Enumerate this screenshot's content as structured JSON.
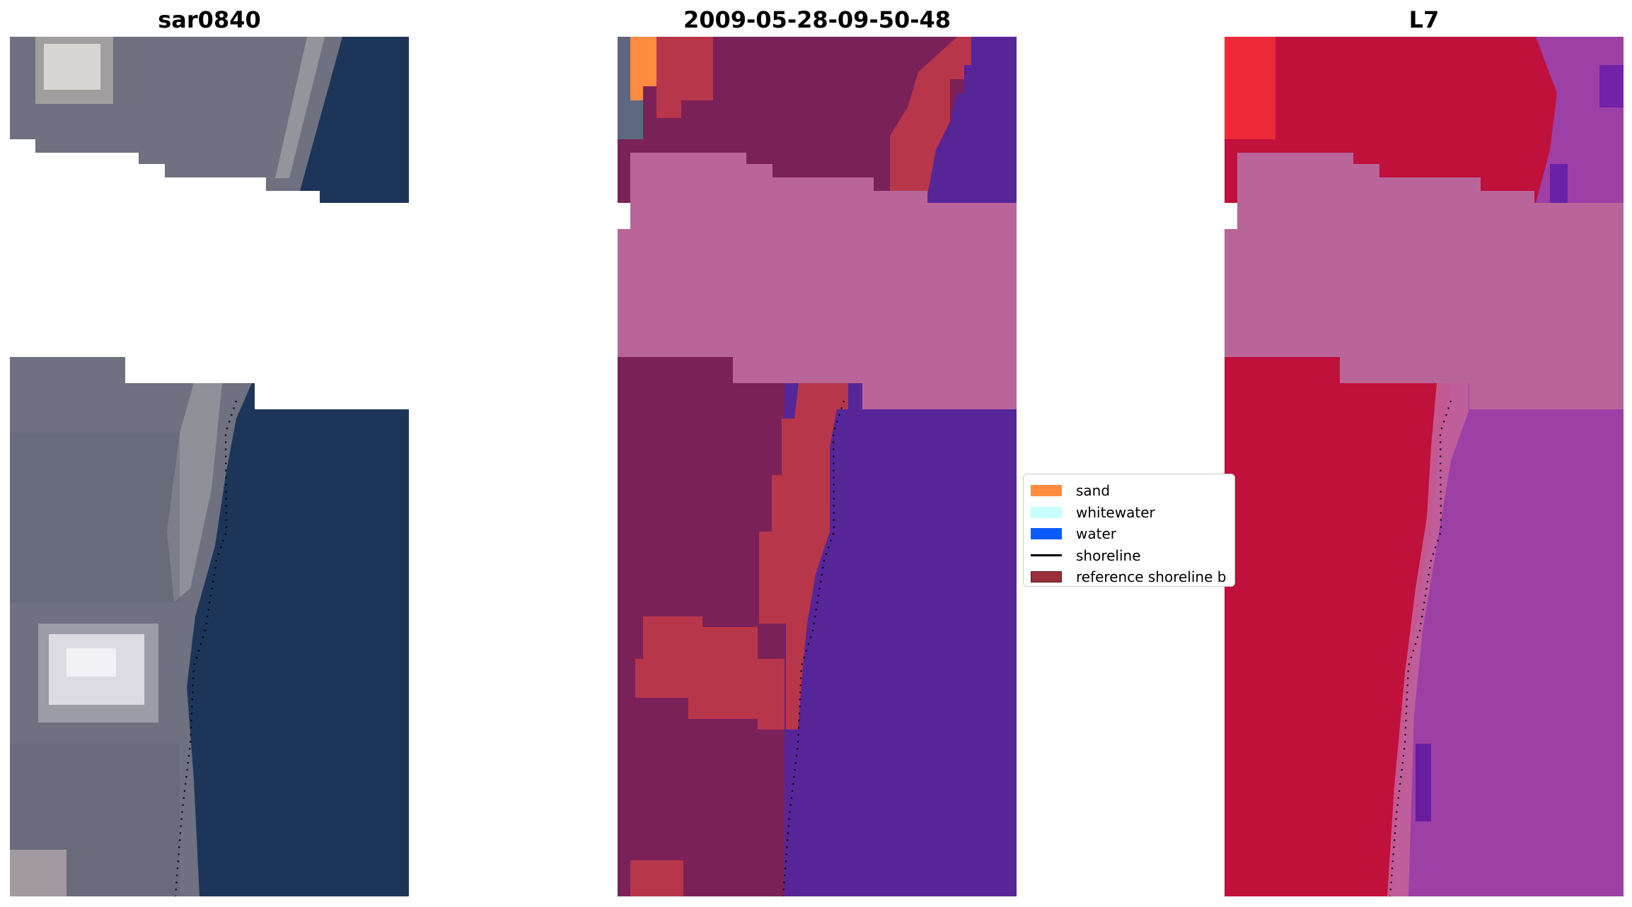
{
  "panels": [
    {
      "title": "sar0840"
    },
    {
      "title": "2009-05-28-09-50-48"
    },
    {
      "title": "L7"
    }
  ],
  "legend": {
    "items": [
      {
        "label": "sand",
        "color": "#ff8c40",
        "kind": "patch"
      },
      {
        "label": "whitewater",
        "color": "#c8ffff",
        "kind": "patch"
      },
      {
        "label": "water",
        "color": "#0a5cff",
        "kind": "patch"
      },
      {
        "label": "shoreline",
        "color": "#000000",
        "kind": "line"
      },
      {
        "label": "reference shoreline b",
        "color": "#9a2f37",
        "kind": "patch"
      }
    ]
  },
  "colors": {
    "rgb_land": "#6f7080",
    "rgb_water": "#1d3559",
    "cloud_mask": "#b9659a",
    "class_land": "#7a2159",
    "class_sand": "#b8364a",
    "class_water": "#562598",
    "nir_land": "#c0103c",
    "nir_water": "#9c40a6"
  }
}
